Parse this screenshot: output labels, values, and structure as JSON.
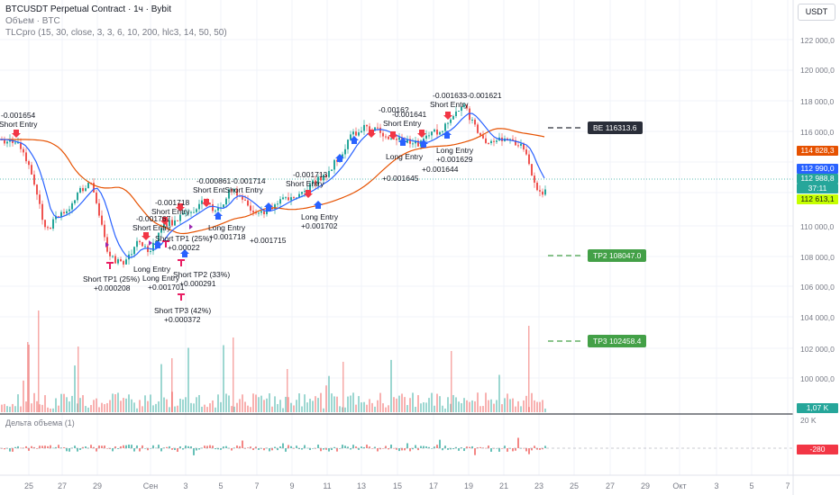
{
  "header": {
    "symbol_line": "BTCUSDT Perpetual Contract · 1ч · Bybit",
    "volume_line": "Объем · BTC",
    "indicator_line": "TLCpro (15, 30, close, 3, 3, 6, 10, 200, hlc3, 14, 50, 50)"
  },
  "currency_button": "USDT",
  "volume_delta_title": "Дельта объема (1)",
  "y_axis": {
    "labels": [
      "122 000,0",
      "120 000,0",
      "118 000,0",
      "116 000,0",
      "110 000,0",
      "108 000,0",
      "106 000,0",
      "104 000,0",
      "102 000,0",
      "100 000,0"
    ],
    "volume_label": "20 K"
  },
  "price_tags": {
    "orange": "114 828,3",
    "blue_price": "112 990,0",
    "blue_timer": "112 988,8",
    "countdown": "37:11",
    "lime": "112 613,1",
    "volume": "1,07 K",
    "delta": "-280"
  },
  "x_axis": [
    "25",
    "27",
    "29",
    "Сен",
    "3",
    "5",
    "7",
    "9",
    "11",
    "13",
    "15",
    "17",
    "19",
    "21",
    "23",
    "25",
    "27",
    "29",
    "Окт",
    "3",
    "5",
    "7"
  ],
  "levels": {
    "be": "BE 116313.6",
    "tp2": "TP2 108047.0",
    "tp3": "TP3 102458.4"
  },
  "annotations": [
    {
      "text": "-0.001654"
    },
    {
      "text": "Short Entry"
    },
    {
      "text": "-0.001633-0.001621"
    },
    {
      "text": "Short Entry"
    },
    {
      "text": "-0.0016?"
    },
    {
      "text": "-0.001641"
    },
    {
      "text": "Short Entry"
    },
    {
      "text": "Long Entry"
    },
    {
      "text": "+0.001644"
    },
    {
      "text": "+0.001645"
    },
    {
      "text": "Long Entry"
    },
    {
      "text": "+0.001629"
    },
    {
      "text": "-0.001713"
    },
    {
      "text": "Short Entry"
    },
    {
      "text": "-0.000861-0.001714"
    },
    {
      "text": "Short EntShort Entry"
    },
    {
      "text": "Long Entry"
    },
    {
      "text": "+0.001702"
    },
    {
      "text": "Long Entry"
    },
    {
      "text": "+0.001718"
    },
    {
      "text": "+0.001715"
    },
    {
      "text": "-0.001718"
    },
    {
      "text": "Short Entry"
    },
    {
      "text": "-0.001767"
    },
    {
      "text": "Short Entry"
    },
    {
      "text": "Short TP1 (25%)"
    },
    {
      "text": "+0.00022"
    },
    {
      "text": "Long Entry"
    },
    {
      "text": "Long Entry"
    },
    {
      "text": "+0.001701"
    },
    {
      "text": "Short TP2 (33%)"
    },
    {
      "text": "+0.000291"
    },
    {
      "text": "Short TP1 (25%)"
    },
    {
      "text": "+0.000208"
    },
    {
      "text": "Short TP3 (42%)"
    },
    {
      "text": "+0.000372"
    }
  ],
  "colors": {
    "up": "#26a69a",
    "down": "#ef5350",
    "ema_fast": "#2962ff",
    "ema_slow": "#e65100",
    "tp_marker": "#e91e63",
    "long_arrow": "#2962ff",
    "short_arrow": "#f23645",
    "label_bg": "#2a2e39",
    "level_green": "#43a047"
  }
}
